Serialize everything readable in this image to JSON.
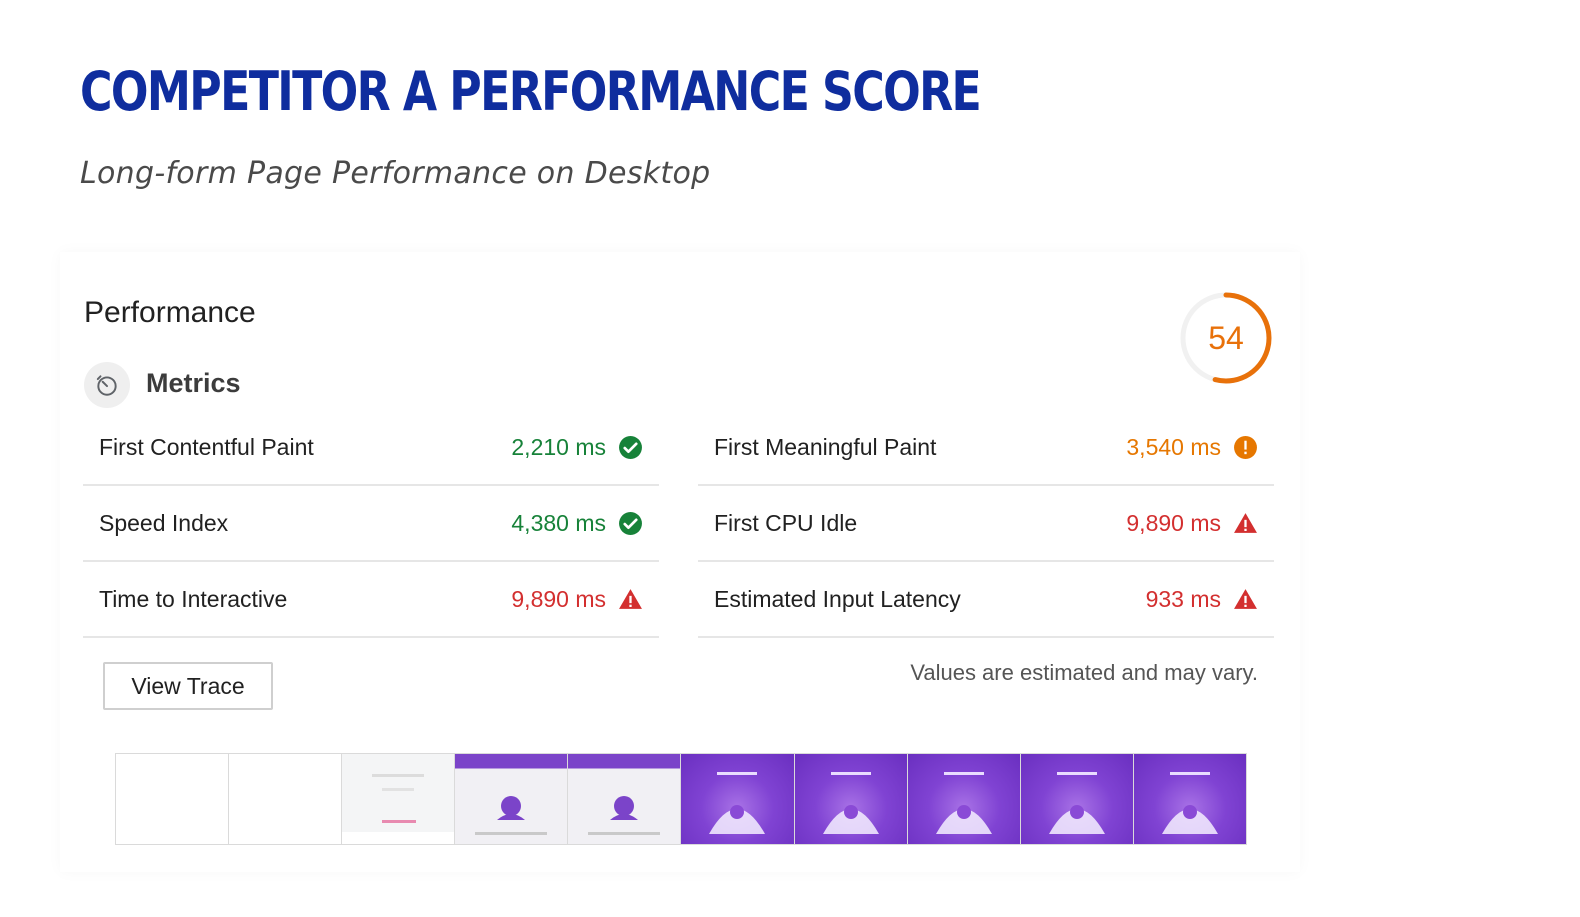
{
  "title": "COMPETITOR A PERFORMANCE SCORE",
  "subtitle": "Long-form Page Performance on Desktop",
  "report": {
    "heading": "Performance",
    "score": "54",
    "score_fraction": 0.54,
    "score_color": "#e8710a",
    "metrics_label": "Metrics",
    "metrics_icon": "stopwatch-icon",
    "left_metrics": [
      {
        "name": "First Contentful Paint",
        "value": "2,210 ms",
        "status": "pass",
        "icon": "check-circle-icon"
      },
      {
        "name": "Speed Index",
        "value": "4,380 ms",
        "status": "pass",
        "icon": "check-circle-icon"
      },
      {
        "name": "Time to Interactive",
        "value": "9,890 ms",
        "status": "fail",
        "icon": "warning-triangle-icon"
      }
    ],
    "right_metrics": [
      {
        "name": "First Meaningful Paint",
        "value": "3,540 ms",
        "status": "average",
        "icon": "info-circle-icon"
      },
      {
        "name": "First CPU Idle",
        "value": "9,890 ms",
        "status": "fail",
        "icon": "warning-triangle-icon"
      },
      {
        "name": "Estimated Input Latency",
        "value": "933 ms",
        "status": "fail",
        "icon": "warning-triangle-icon"
      }
    ],
    "view_trace_label": "View Trace",
    "estimate_note": "Values are estimated and may vary.",
    "filmstrip": [
      "blank",
      "blank",
      "loading",
      "partial",
      "partial",
      "full",
      "full",
      "full",
      "full",
      "full"
    ],
    "colors": {
      "pass": "#178239",
      "average": "#e67700",
      "fail": "#d32f2f",
      "title": "#0f2d9e",
      "brand_purple": "#7b44c9"
    }
  }
}
